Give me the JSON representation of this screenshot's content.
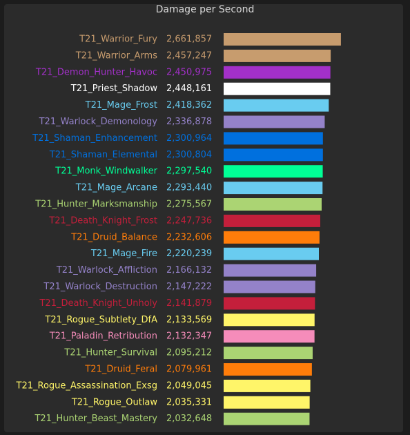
{
  "chart_data": {
    "type": "bar",
    "orientation": "horizontal",
    "title": "Damage per Second",
    "categories": [
      "T21_Warrior_Fury",
      "T21_Warrior_Arms",
      "T21_Demon_Hunter_Havoc",
      "T21_Priest_Shadow",
      "T21_Mage_Frost",
      "T21_Warlock_Demonology",
      "T21_Shaman_Enhancement",
      "T21_Shaman_Elemental",
      "T21_Monk_Windwalker",
      "T21_Mage_Arcane",
      "T21_Hunter_Marksmanship",
      "T21_Death_Knight_Frost",
      "T21_Druid_Balance",
      "T21_Mage_Fire",
      "T21_Warlock_Affliction",
      "T21_Warlock_Destruction",
      "T21_Death_Knight_Unholy",
      "T21_Rogue_Subtlety_DfA",
      "T21_Paladin_Retribution",
      "T21_Hunter_Survival",
      "T21_Druid_Feral",
      "T21_Rogue_Assassination_Exsg",
      "T21_Rogue_Outlaw",
      "T21_Hunter_Beast_Mastery"
    ],
    "values": [
      2661857,
      2457247,
      2450975,
      2448161,
      2418362,
      2336878,
      2300964,
      2300804,
      2297540,
      2293440,
      2275567,
      2247736,
      2232606,
      2220239,
      2166132,
      2147222,
      2141879,
      2133569,
      2132347,
      2095212,
      2079961,
      2049045,
      2035331,
      2032648
    ],
    "value_labels": [
      "2,661,857",
      "2,457,247",
      "2,450,975",
      "2,448,161",
      "2,418,362",
      "2,336,878",
      "2,300,964",
      "2,300,804",
      "2,297,540",
      "2,293,440",
      "2,275,567",
      "2,247,736",
      "2,232,606",
      "2,220,239",
      "2,166,132",
      "2,147,222",
      "2,141,879",
      "2,133,569",
      "2,132,347",
      "2,095,212",
      "2,079,961",
      "2,049,045",
      "2,035,331",
      "2,032,648"
    ],
    "colors": [
      "#C79C6E",
      "#C79C6E",
      "#A330C9",
      "#FFFFFF",
      "#69CCF0",
      "#9482C9",
      "#0070DE",
      "#0070DE",
      "#00FF96",
      "#69CCF0",
      "#ABD473",
      "#C41F3B",
      "#FF7D0A",
      "#69CCF0",
      "#9482C9",
      "#9482C9",
      "#C41F3B",
      "#FFF569",
      "#F58CBA",
      "#ABD473",
      "#FF7D0A",
      "#FFF569",
      "#FFF569",
      "#ABD473"
    ],
    "xlim": [
      310000,
      3300000
    ]
  }
}
